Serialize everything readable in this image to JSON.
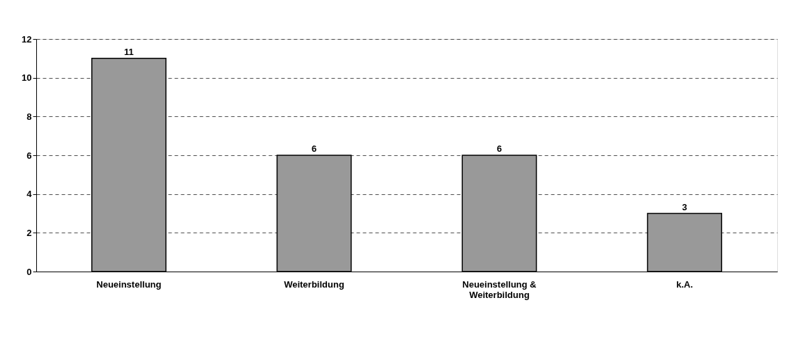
{
  "chart_data": {
    "type": "bar",
    "categories": [
      "Neueinstellung",
      "Weiterbildung",
      "Neueinstellung & Weiterbildung",
      "k.A."
    ],
    "values": [
      11,
      6,
      6,
      3
    ],
    "color": "#999999",
    "ylim": [
      0,
      12
    ],
    "yticks": [
      0,
      2,
      4,
      6,
      8,
      10,
      12
    ],
    "grid": "y",
    "data_labels": true
  }
}
